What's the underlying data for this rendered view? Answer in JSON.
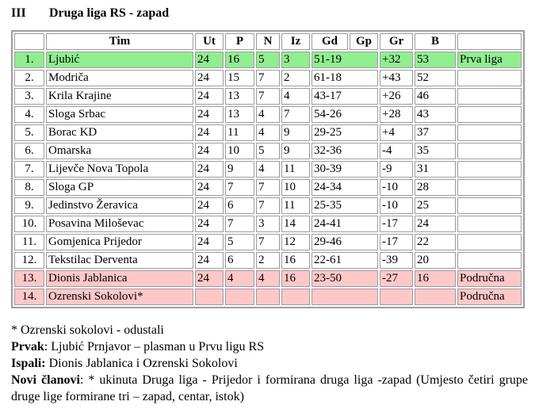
{
  "title": {
    "numeral": "III",
    "text": "Druga liga RS - zapad"
  },
  "table": {
    "headers": [
      "",
      "Tim",
      "Ut",
      "P",
      "N",
      "Iz",
      "Gd",
      "Gp",
      "Gr",
      "B",
      ""
    ],
    "rows": [
      {
        "pos": "1.",
        "team": "Ljubić",
        "ut": "24",
        "p": "16",
        "n": "5",
        "iz": "3",
        "goals": "51-19",
        "gr": "+32",
        "b": "53",
        "note": "Prva liga",
        "highlight": "green"
      },
      {
        "pos": "2.",
        "team": "Modriča",
        "ut": "24",
        "p": "15",
        "n": "7",
        "iz": "2",
        "goals": "61-18",
        "gr": "+43",
        "b": "52",
        "note": "",
        "highlight": ""
      },
      {
        "pos": "3.",
        "team": "Krila Krajine",
        "ut": "24",
        "p": "13",
        "n": "7",
        "iz": "4",
        "goals": "43-17",
        "gr": "+26",
        "b": "46",
        "note": "",
        "highlight": ""
      },
      {
        "pos": "4.",
        "team": "Sloga Srbac",
        "ut": "24",
        "p": "13",
        "n": "4",
        "iz": "7",
        "goals": "54-26",
        "gr": "+28",
        "b": "43",
        "note": "",
        "highlight": ""
      },
      {
        "pos": "5.",
        "team": "Borac KD",
        "ut": "24",
        "p": "11",
        "n": "4",
        "iz": "9",
        "goals": "29-25",
        "gr": "+4",
        "b": "37",
        "note": "",
        "highlight": ""
      },
      {
        "pos": "6.",
        "team": "Omarska",
        "ut": "24",
        "p": "10",
        "n": "5",
        "iz": "9",
        "goals": "32-36",
        "gr": "-4",
        "b": "35",
        "note": "",
        "highlight": ""
      },
      {
        "pos": "7.",
        "team": "Lijevče Nova Topola",
        "ut": "24",
        "p": "9",
        "n": "4",
        "iz": "11",
        "goals": "30-39",
        "gr": "-9",
        "b": "31",
        "note": "",
        "highlight": ""
      },
      {
        "pos": "8.",
        "team": "Sloga GP",
        "ut": "24",
        "p": "7",
        "n": "7",
        "iz": "10",
        "goals": "24-34",
        "gr": "-10",
        "b": "28",
        "note": "",
        "highlight": ""
      },
      {
        "pos": "9.",
        "team": "Jedinstvo Žeravica",
        "ut": "24",
        "p": "6",
        "n": "7",
        "iz": "11",
        "goals": "25-35",
        "gr": "-10",
        "b": "25",
        "note": "",
        "highlight": ""
      },
      {
        "pos": "10.",
        "team": "Posavina Miloševac",
        "ut": "24",
        "p": "7",
        "n": "3",
        "iz": "14",
        "goals": "24-41",
        "gr": "-17",
        "b": "24",
        "note": "",
        "highlight": ""
      },
      {
        "pos": "11.",
        "team": "Gomjenica Prijedor",
        "ut": "24",
        "p": "5",
        "n": "7",
        "iz": "12",
        "goals": "29-46",
        "gr": "-17",
        "b": "22",
        "note": "",
        "highlight": ""
      },
      {
        "pos": "12.",
        "team": "Tekstilac Derventa",
        "ut": "24",
        "p": "6",
        "n": "2",
        "iz": "16",
        "goals": "22-61",
        "gr": "-39",
        "b": "20",
        "note": "",
        "highlight": ""
      },
      {
        "pos": "13.",
        "team": "Dionis Jablanica",
        "ut": "24",
        "p": "4",
        "n": "4",
        "iz": "16",
        "goals": "23-50",
        "gr": "-27",
        "b": "16",
        "note": "Područna",
        "highlight": "pink"
      },
      {
        "pos": "14.",
        "team": "Ozrenski Sokolovi*",
        "ut": "",
        "p": "",
        "n": "",
        "iz": "",
        "goals": "",
        "gr": "",
        "b": "",
        "note": "Područna",
        "highlight": "pink"
      }
    ]
  },
  "footer": {
    "note": "* Ozrenski sokolovi - odustali",
    "prvak_label": "Prvak",
    "prvak_text": ": Ljubić Prnjavor – plasman u Prvu ligu RS",
    "ispali_label": "Ispali:",
    "ispali_text": " Dionis Jablanica i Ozrenski Sokolovi",
    "novi_label": "Novi članovi",
    "novi_text": ": * ukinuta Druga liga - Prijedor i formirana druga liga -zapad (Umjesto četiri grupe druge lige formirane tri – zapad, centar, istok)"
  },
  "colors": {
    "promotion_green": "#90ee90",
    "relegation_pink": "#ffc8c8",
    "border_gray": "#9c9c9c"
  }
}
